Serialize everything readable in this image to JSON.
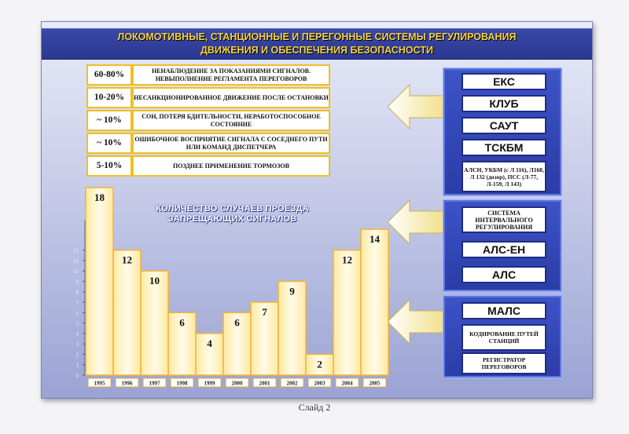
{
  "title": {
    "line1": "ЛОКОМОТИВНЫЕ, СТАНЦИОННЫЕ И ПЕРЕГОННЫЕ СИСТЕМЫ РЕГУЛИРОВАНИЯ",
    "line2": "ДВИЖЕНИЯ И ОБЕСПЕЧЕНИЯ БЕЗОПАСНОСТИ"
  },
  "reasons": [
    {
      "pct": "60-80%",
      "text": "НЕНАБЛЮДЕНИЕ ЗА ПОКАЗАНИЯМИ СИГНАЛОВ. НЕВЫПОЛНЕНИЕ РЕГЛАМЕНТА ПЕРЕГОВОРОВ"
    },
    {
      "pct": "10-20%",
      "text": "НЕСАНКЦИОНИРОВАННОЕ ДВИЖЕНИЕ ПОСЛЕ ОСТАНОВКИ"
    },
    {
      "pct": "~ 10%",
      "text": "СОН, ПОТЕРЯ БДИТЕЛЬНОСТИ, НЕРАБОТОСПОСОБНОЕ СОСТОЯНИЕ"
    },
    {
      "pct": "~ 10%",
      "text": "ОШИБОЧНОЕ ВОСПРИЯТИЕ СИГНАЛА С СОСЕДНЕГО ПУТИ ИЛИ КОМАНД ДИСПЕТЧЕРА"
    },
    {
      "pct": "5-10%",
      "text": "ПОЗДНЕЕ ПРИМЕНЕНИЕ ТОРМОЗОВ"
    }
  ],
  "panels": {
    "locomotive": {
      "items": [
        "ЕКС",
        "КЛУБ",
        "САУТ",
        "ТСКБМ"
      ],
      "note": "АЛСН, УКБМ (с Л 116), Л168, Л 132 (дозор), ПСС (Л-77, Л-159, Л 143)"
    },
    "interval": {
      "system": "СИСТЕМА ИНТЕРВАЛЬНОГО РЕГУЛИРОВАНИЯ",
      "items": [
        "АЛС-ЕН",
        "АЛС"
      ]
    },
    "station": {
      "item": "МАЛС",
      "coding": "КОДИРОВАНИЕ ПУТЕЙ СТАНЦИЙ",
      "recorder": "РЕГИСТРАТОР ПЕРЕГОВОРОВ"
    }
  },
  "chart_data": {
    "type": "bar",
    "title": "КОЛИЧЕСТВО СЛУЧАЕВ ПРОЕЗДА ЗАПРЕЩАЮЩИХ СИГНАЛОВ",
    "categories": [
      "1995",
      "1996",
      "1997",
      "1998",
      "1999",
      "2000",
      "2001",
      "2002",
      "2003",
      "2004",
      "2005"
    ],
    "values": [
      18,
      12,
      10,
      6,
      4,
      6,
      7,
      9,
      2,
      12,
      14
    ],
    "y_ticks": [
      "0",
      "1",
      "2",
      "3",
      "4",
      "5",
      "6",
      "7",
      "8",
      "9",
      "10",
      "11",
      "12"
    ],
    "ylim": [
      0,
      18
    ],
    "grid": false
  },
  "footer": "Слайд 2",
  "colors": {
    "title_bar": "#2b3890",
    "title_text": "#f6d23a",
    "reason_border": "#f0c020",
    "panel": "#3048b8",
    "bar_fill": "#fff6c8",
    "bar_border": "#f2b23a"
  }
}
